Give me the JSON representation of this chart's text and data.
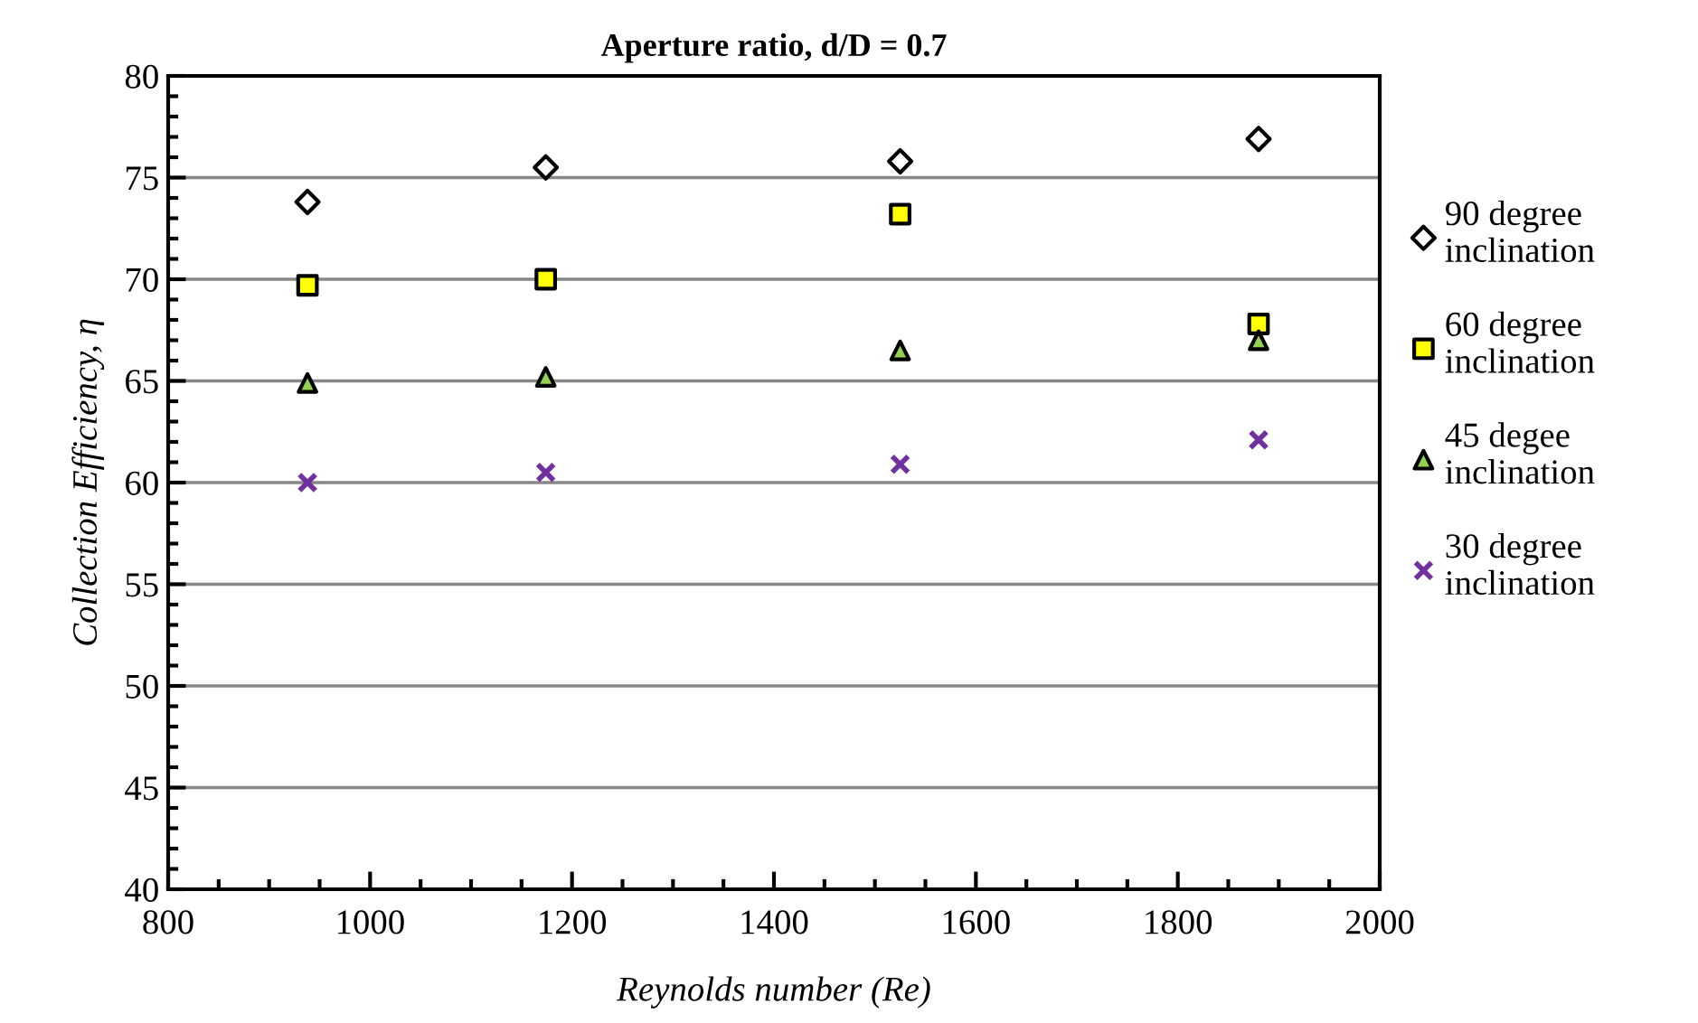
{
  "chart_data": {
    "type": "scatter",
    "title": "Aperture ratio, d/D = 0.7",
    "xlabel": "Reynolds number (Re)",
    "ylabel": "Collection Efficiency, η",
    "x": [
      938,
      1174,
      1525,
      1880
    ],
    "series": [
      {
        "name": "90 degree inclination",
        "color": "#ffffff",
        "marker": "diamond",
        "values": [
          73.8,
          75.5,
          75.8,
          76.9
        ]
      },
      {
        "name": "60 degree inclination",
        "color": "#ffff00",
        "marker": "square",
        "values": [
          69.7,
          70.0,
          73.2,
          67.8
        ]
      },
      {
        "name": "45 degee inclination",
        "color": "#92d050",
        "marker": "triangle",
        "values": [
          64.9,
          65.2,
          66.5,
          67.0
        ]
      },
      {
        "name": "30 degree inclination",
        "color": "#7030a0",
        "marker": "cross",
        "values": [
          60.0,
          60.5,
          60.9,
          62.1
        ]
      }
    ],
    "xlim": [
      800,
      2000
    ],
    "xticks": [
      800,
      1000,
      1200,
      1400,
      1600,
      1800,
      2000
    ],
    "ylim": [
      40,
      80
    ],
    "yticks": [
      40,
      45,
      50,
      55,
      60,
      65,
      70,
      75,
      80
    ],
    "grid": "y",
    "legend": "right"
  }
}
